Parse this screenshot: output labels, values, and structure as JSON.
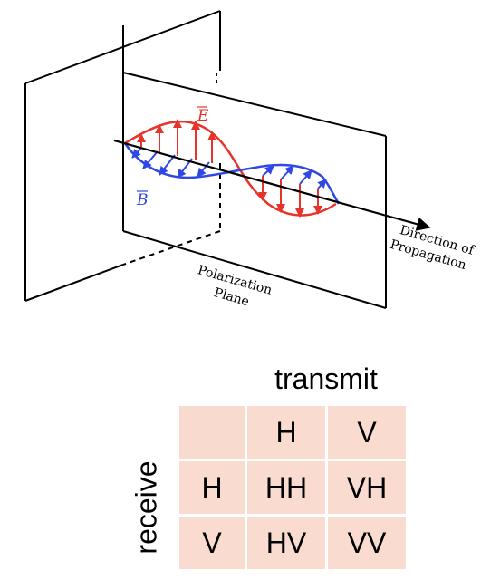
{
  "figure": {
    "e_label": "E",
    "b_label": "B",
    "direction_label_line1": "Direction of",
    "direction_label_line2": "Propagation",
    "plane_label_line1": "Polarization",
    "plane_label_line2": "Plane"
  },
  "table": {
    "column_header_title": "transmit",
    "row_header_title": "receive",
    "column_headers": [
      "H",
      "V"
    ],
    "rows": [
      {
        "label": "H",
        "cells": [
          "HH",
          "VH"
        ]
      },
      {
        "label": "V",
        "cells": [
          "HV",
          "VV"
        ]
      }
    ]
  },
  "colors": {
    "e_field": "#e8332b",
    "b_field": "#2e47e6",
    "table_fill": "#f9dccf",
    "figure_background": "#ffffff"
  }
}
